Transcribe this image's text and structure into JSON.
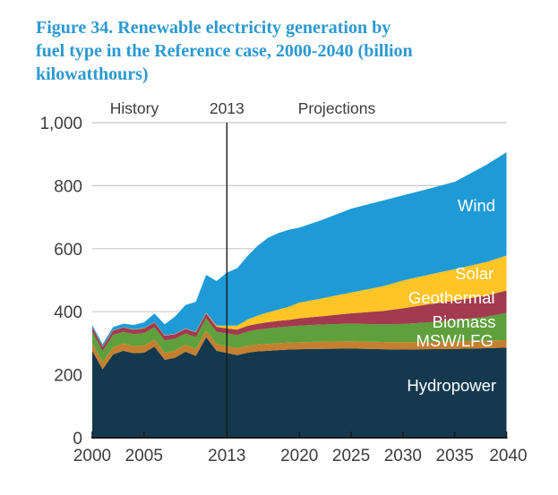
{
  "figure": {
    "title": "Figure 34. Renewable electricity generation by\nfuel type in the Reference case, 2000-2040 (billion\nkilowatthours)",
    "title_color": "#2B99D2"
  },
  "chart_data": {
    "type": "area",
    "stacked": true,
    "title": "Figure 34. Renewable electricity generation by fuel type in the Reference case, 2000-2040",
    "unit": "billion kilowatthours",
    "xlim": [
      2000,
      2040
    ],
    "ylim": [
      0,
      1000
    ],
    "grid": true,
    "legend_position": "in-plot-labels",
    "gridline_color": "#C9C9C9",
    "axis_color": "#1A1A1A",
    "tick_label_color": "#3C3C3C",
    "annotations": {
      "history_label": "History",
      "divider_label": "2013",
      "projections_label": "Projections",
      "divider_year": 2013
    },
    "y_ticks": [
      0,
      200,
      400,
      600,
      800,
      1000
    ],
    "y_tick_labels": [
      "0",
      "200",
      "400",
      "600",
      "800",
      "1,000"
    ],
    "x_ticks": [
      2000,
      2005,
      2013,
      2020,
      2025,
      2030,
      2035,
      2040
    ],
    "x_tick_labels": [
      "2000",
      "2005",
      "2013",
      "2020",
      "2025",
      "2030",
      "2035",
      "2040"
    ],
    "x": [
      2000,
      2001,
      2002,
      2003,
      2004,
      2005,
      2006,
      2007,
      2008,
      2009,
      2010,
      2011,
      2012,
      2013,
      2014,
      2015,
      2016,
      2017,
      2018,
      2019,
      2020,
      2022,
      2025,
      2028,
      2030,
      2032,
      2035,
      2038,
      2040
    ],
    "series": [
      {
        "name": "Hydropower",
        "color": "#14394F",
        "label_text_color": "#FFFFFF",
        "label_at": [
          2034.7,
          148
        ],
        "values": [
          276,
          217,
          264,
          276,
          268,
          270,
          289,
          247,
          254,
          273,
          260,
          319,
          276,
          269,
          262,
          270,
          274,
          276,
          278,
          280,
          281,
          282,
          283,
          281,
          280,
          281,
          282,
          284,
          286
        ]
      },
      {
        "name": "MSW/LFG",
        "color": "#C5802F",
        "label_text_color": "#FFFFFF",
        "label_at": [
          2035.0,
          290
        ],
        "values": [
          23,
          23,
          23,
          23,
          23,
          23,
          23,
          23,
          23,
          22,
          22,
          22,
          22,
          22,
          22,
          22,
          22,
          22,
          22,
          22,
          22,
          23,
          23,
          23,
          23,
          23,
          24,
          24,
          24
        ]
      },
      {
        "name": "Biomass",
        "color": "#5EA03C",
        "label_text_color": "#FFFFFF",
        "label_at": [
          2035.9,
          350
        ],
        "values": [
          38,
          35,
          39,
          37,
          38,
          39,
          39,
          39,
          37,
          36,
          37,
          38,
          38,
          40,
          42,
          45,
          47,
          49,
          50,
          51,
          53,
          54,
          56,
          56,
          58,
          61,
          67,
          76,
          86
        ]
      },
      {
        "name": "Geothermal",
        "color": "#A23B4F",
        "label_text_color": "#FFFFFF",
        "label_at": [
          2034.7,
          426
        ],
        "values": [
          14,
          14,
          14,
          14,
          14,
          15,
          15,
          15,
          15,
          15,
          16,
          16,
          16,
          16,
          17,
          18,
          19,
          20,
          21,
          21,
          23,
          26,
          33,
          42,
          50,
          56,
          62,
          67,
          71
        ]
      },
      {
        "name": "Solar",
        "color": "#FFC425",
        "label_text_color": "#FFFFFF",
        "label_at": [
          2036.9,
          503
        ],
        "values": [
          1,
          1,
          1,
          1,
          1,
          1,
          1,
          1,
          1,
          1,
          1,
          2,
          4,
          9,
          13,
          20,
          26,
          31,
          36,
          42,
          50,
          56,
          66,
          78,
          88,
          93,
          100,
          106,
          111
        ]
      },
      {
        "name": "Wind",
        "color": "#1E9BD7",
        "label_text_color": "#FFFFFF",
        "label_at": [
          2037.1,
          719
        ],
        "values": [
          6,
          7,
          10,
          11,
          14,
          18,
          27,
          35,
          55,
          74,
          95,
          120,
          141,
          168,
          182,
          202,
          222,
          237,
          243,
          244,
          238,
          248,
          266,
          272,
          270,
          272,
          277,
          308,
          328
        ]
      }
    ]
  }
}
